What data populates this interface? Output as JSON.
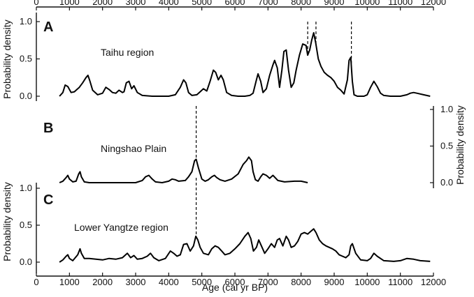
{
  "chart_data": {
    "type": "line",
    "xlabel": "Age (cal yr BP)",
    "xlim": [
      0,
      12000
    ],
    "x_ticks": [
      "0",
      "1000",
      "2000",
      "3000",
      "4000",
      "5000",
      "6000",
      "7000",
      "8000",
      "9000",
      "10000",
      "11000",
      "12000"
    ],
    "x_tick_values": [
      0,
      1000,
      2000,
      3000,
      4000,
      5000,
      6000,
      7000,
      8000,
      9000,
      10000,
      11000,
      12000
    ],
    "panels": [
      {
        "letter": "A",
        "label": "Taihu region",
        "ylabel": "Probability density",
        "ylim": [
          0,
          1.0
        ],
        "y_ticks": [
          "0.0",
          "0.5",
          "1.0"
        ],
        "y_tick_values": [
          0,
          0.5,
          1.0
        ],
        "axis_side": "left",
        "x": [
          700,
          800,
          870,
          950,
          1050,
          1150,
          1300,
          1400,
          1500,
          1560,
          1620,
          1700,
          1850,
          2000,
          2100,
          2200,
          2300,
          2400,
          2500,
          2600,
          2650,
          2720,
          2800,
          2880,
          2950,
          3050,
          3200,
          3500,
          3800,
          4000,
          4200,
          4350,
          4450,
          4520,
          4600,
          4700,
          4850,
          4950,
          5050,
          5150,
          5250,
          5350,
          5420,
          5500,
          5580,
          5650,
          5750,
          5900,
          6100,
          6300,
          6450,
          6550,
          6650,
          6700,
          6780,
          6850,
          6950,
          7050,
          7150,
          7200,
          7280,
          7350,
          7420,
          7480,
          7550,
          7620,
          7700,
          7780,
          7850,
          7950,
          8050,
          8150,
          8200,
          8260,
          8320,
          8380,
          8440,
          8520,
          8600,
          8700,
          8800,
          8900,
          9000,
          9100,
          9200,
          9300,
          9400,
          9450,
          9500,
          9550,
          9600,
          9700,
          9800,
          9900,
          10000,
          10100,
          10200,
          10300,
          10400,
          10500,
          10700,
          11000,
          11200,
          11300,
          11400,
          11500,
          11700,
          11900
        ],
        "values": [
          0.0,
          0.05,
          0.15,
          0.13,
          0.05,
          0.06,
          0.12,
          0.18,
          0.25,
          0.28,
          0.2,
          0.08,
          0.02,
          0.04,
          0.12,
          0.09,
          0.05,
          0.04,
          0.08,
          0.05,
          0.06,
          0.18,
          0.2,
          0.1,
          0.14,
          0.05,
          0.01,
          0.0,
          0.0,
          0.0,
          0.02,
          0.12,
          0.22,
          0.18,
          0.05,
          0.01,
          0.02,
          0.06,
          0.1,
          0.07,
          0.2,
          0.35,
          0.32,
          0.22,
          0.28,
          0.22,
          0.05,
          0.01,
          0.0,
          0.0,
          0.01,
          0.04,
          0.22,
          0.3,
          0.2,
          0.05,
          0.1,
          0.28,
          0.42,
          0.48,
          0.38,
          0.12,
          0.35,
          0.6,
          0.62,
          0.35,
          0.12,
          0.18,
          0.35,
          0.55,
          0.7,
          0.68,
          0.55,
          0.62,
          0.75,
          0.85,
          0.72,
          0.5,
          0.4,
          0.32,
          0.28,
          0.25,
          0.2,
          0.12,
          0.08,
          0.03,
          0.22,
          0.48,
          0.52,
          0.2,
          0.02,
          0.0,
          0.0,
          0.0,
          0.02,
          0.12,
          0.2,
          0.13,
          0.04,
          0.01,
          0.0,
          0.0,
          0.02,
          0.04,
          0.05,
          0.04,
          0.02,
          0.0
        ]
      },
      {
        "letter": "B",
        "label": "Ningshao Plain",
        "ylabel": "Probability density",
        "ylim": [
          0,
          1.0
        ],
        "y_ticks": [
          "0.0",
          "0.5",
          "1.0"
        ],
        "y_tick_values": [
          0,
          0.5,
          1.0
        ],
        "axis_side": "right",
        "x": [
          700,
          800,
          900,
          950,
          1000,
          1100,
          1200,
          1280,
          1320,
          1360,
          1450,
          1600,
          2000,
          2500,
          3000,
          3200,
          3300,
          3400,
          3500,
          3600,
          3800,
          4000,
          4100,
          4200,
          4300,
          4500,
          4600,
          4700,
          4780,
          4830,
          4900,
          5000,
          5100,
          5200,
          5300,
          5380,
          5450,
          5550,
          5700,
          5900,
          6100,
          6250,
          6350,
          6420,
          6500,
          6550,
          6620,
          6700,
          6780,
          6850,
          6950,
          7050,
          7150,
          7300,
          7500,
          7800,
          8000,
          8200
        ],
        "values": [
          0.0,
          0.02,
          0.07,
          0.1,
          0.05,
          0.01,
          0.02,
          0.12,
          0.15,
          0.08,
          0.01,
          0.0,
          0.0,
          0.0,
          0.0,
          0.03,
          0.08,
          0.1,
          0.05,
          0.01,
          0.0,
          0.02,
          0.05,
          0.04,
          0.02,
          0.03,
          0.08,
          0.15,
          0.3,
          0.32,
          0.2,
          0.05,
          0.02,
          0.04,
          0.08,
          0.1,
          0.07,
          0.04,
          0.02,
          0.05,
          0.12,
          0.25,
          0.3,
          0.35,
          0.3,
          0.15,
          0.04,
          0.02,
          0.08,
          0.12,
          0.1,
          0.06,
          0.1,
          0.03,
          0.01,
          0.02,
          0.02,
          0.0
        ]
      },
      {
        "letter": "C",
        "label": "Lower Yangtze region",
        "ylabel": "Probability density",
        "ylim": [
          0,
          1.0
        ],
        "y_ticks": [
          "0.0",
          "0.5",
          "1.0"
        ],
        "y_tick_values": [
          0,
          0.5,
          1.0
        ],
        "axis_side": "left",
        "x": [
          700,
          800,
          900,
          950,
          1000,
          1100,
          1250,
          1320,
          1360,
          1450,
          1600,
          1800,
          2000,
          2200,
          2400,
          2600,
          2700,
          2750,
          2850,
          2950,
          3050,
          3200,
          3350,
          3450,
          3550,
          3700,
          3900,
          4050,
          4150,
          4250,
          4350,
          4450,
          4550,
          4650,
          4750,
          4820,
          4880,
          4950,
          5050,
          5200,
          5300,
          5400,
          5500,
          5600,
          5700,
          5850,
          6000,
          6150,
          6300,
          6400,
          6480,
          6560,
          6650,
          6720,
          6800,
          6900,
          7000,
          7100,
          7200,
          7280,
          7350,
          7450,
          7550,
          7620,
          7700,
          7800,
          7900,
          8000,
          8100,
          8200,
          8300,
          8380,
          8450,
          8550,
          8650,
          8750,
          8850,
          8950,
          9050,
          9150,
          9250,
          9350,
          9450,
          9500,
          9550,
          9650,
          9800,
          10000,
          10100,
          10200,
          10300,
          10500,
          10800,
          11000,
          11200,
          11400,
          11600,
          11900
        ],
        "values": [
          0.0,
          0.03,
          0.08,
          0.1,
          0.05,
          0.02,
          0.1,
          0.18,
          0.12,
          0.05,
          0.05,
          0.04,
          0.03,
          0.05,
          0.04,
          0.06,
          0.1,
          0.12,
          0.06,
          0.09,
          0.04,
          0.05,
          0.08,
          0.12,
          0.06,
          0.02,
          0.05,
          0.15,
          0.12,
          0.08,
          0.1,
          0.24,
          0.25,
          0.15,
          0.22,
          0.35,
          0.3,
          0.2,
          0.12,
          0.1,
          0.18,
          0.22,
          0.2,
          0.15,
          0.1,
          0.12,
          0.18,
          0.25,
          0.35,
          0.4,
          0.32,
          0.15,
          0.2,
          0.3,
          0.22,
          0.12,
          0.18,
          0.25,
          0.2,
          0.3,
          0.32,
          0.22,
          0.35,
          0.3,
          0.2,
          0.22,
          0.28,
          0.38,
          0.4,
          0.38,
          0.42,
          0.45,
          0.4,
          0.3,
          0.25,
          0.22,
          0.2,
          0.18,
          0.15,
          0.1,
          0.08,
          0.06,
          0.1,
          0.22,
          0.25,
          0.12,
          0.03,
          0.02,
          0.05,
          0.12,
          0.08,
          0.02,
          0.01,
          0.02,
          0.05,
          0.04,
          0.02,
          0.01
        ]
      }
    ],
    "dashed_markers": [
      {
        "panel": "A",
        "x": [
          8200,
          8450,
          9520
        ]
      },
      {
        "panel": "B",
        "x": [
          4830
        ]
      },
      {
        "panel": "C",
        "x": [
          4830
        ]
      }
    ]
  }
}
